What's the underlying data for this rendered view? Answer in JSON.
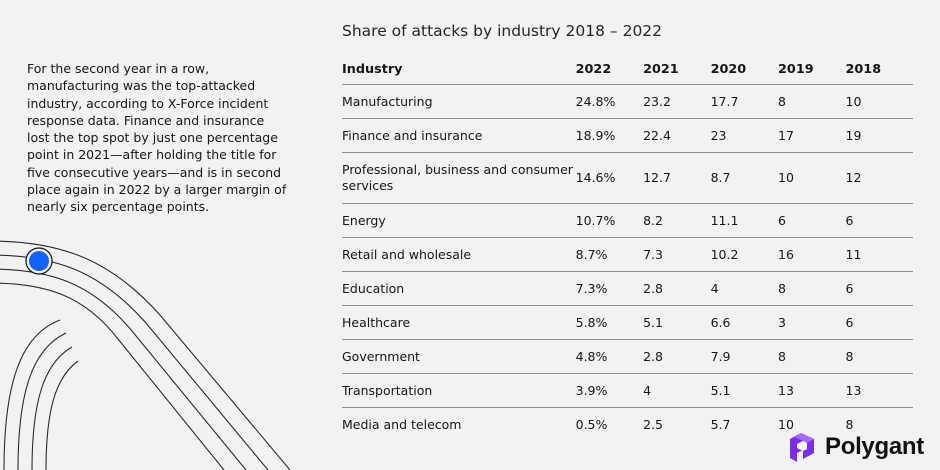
{
  "intro_text": "For the second year in a row, manufacturing was the top-attacked industry, according to X-Force incident response data. Finance and insurance lost the top spot by just one percentage point in 2021—after holding the title for five consecutive years—and is in second place again in 2022 by a larger margin of nearly six percentage points.",
  "colors": {
    "background": "#f2f2f2",
    "accent_dot": "#0f62fe",
    "rule": "#8d8d8d",
    "logo_purple": "#7b2cf0"
  },
  "watermark": {
    "text": "Polygant",
    "icon": "polygant-logo-icon"
  },
  "chart_data": {
    "type": "table",
    "title": "Share of attacks by industry 2018 – 2022",
    "columns": [
      "Industry",
      "2022",
      "2021",
      "2020",
      "2019",
      "2018"
    ],
    "rows": [
      [
        "Manufacturing",
        "24.8%",
        "23.2",
        "17.7",
        "8",
        "10"
      ],
      [
        "Finance and insurance",
        "18.9%",
        "22.4",
        "23",
        "17",
        "19"
      ],
      [
        "Professional, business and consumer services",
        "14.6%",
        "12.7",
        "8.7",
        "10",
        "12"
      ],
      [
        "Energy",
        "10.7%",
        "8.2",
        "11.1",
        "6",
        "6"
      ],
      [
        "Retail and wholesale",
        "8.7%",
        "7.3",
        "10.2",
        "16",
        "11"
      ],
      [
        "Education",
        "7.3%",
        "2.8",
        "4",
        "8",
        "6"
      ],
      [
        "Healthcare",
        "5.8%",
        "5.1",
        "6.6",
        "3",
        "6"
      ],
      [
        "Government",
        "4.8%",
        "2.8",
        "7.9",
        "8",
        "8"
      ],
      [
        "Transportation",
        "3.9%",
        "4",
        "5.1",
        "13",
        "13"
      ],
      [
        "Media and telecom",
        "0.5%",
        "2.5",
        "5.7",
        "10",
        "8"
      ]
    ]
  }
}
